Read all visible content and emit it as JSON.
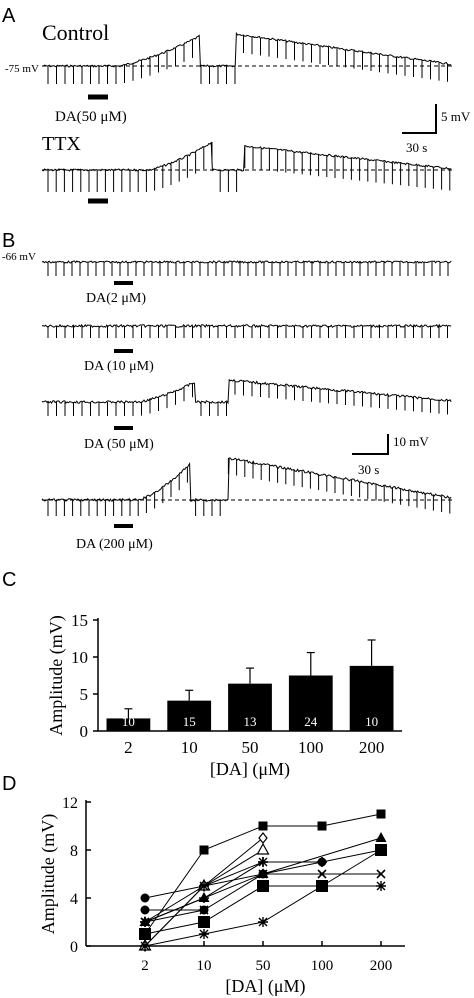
{
  "panelA": {
    "label": "A",
    "trace1_label": "Control",
    "trace2_label": "TTX",
    "baseline_label": "-75 mV",
    "drug_label": "DA(50 μM)",
    "scale_mv": "5 mV",
    "scale_time": "30 s"
  },
  "panelB": {
    "label": "B",
    "baseline_label": "-66 mV",
    "drug_labels": [
      "DA(2 μM)",
      "DA (10 μM)",
      "DA (50 μM)",
      "DA (200 μM)"
    ],
    "scale_mv": "10 mV",
    "scale_time": "30 s"
  },
  "panelC": {
    "label": "C",
    "chart_data": {
      "type": "bar",
      "categories": [
        "2",
        "10",
        "50",
        "100",
        "200"
      ],
      "values": [
        1.7,
        4.1,
        6.4,
        7.5,
        8.8
      ],
      "errors": [
        1.3,
        1.4,
        2.1,
        3.1,
        3.5
      ],
      "n_labels": [
        "10",
        "15",
        "13",
        "24",
        "10"
      ],
      "xlabel": "[DA] (μM)",
      "ylabel": "Amplitude (mV)",
      "ylim": [
        0,
        15
      ],
      "yticks": [
        "0",
        "5",
        "10",
        "15"
      ],
      "bar_color": "#000000"
    }
  },
  "panelD": {
    "label": "D",
    "chart_data": {
      "type": "line",
      "categories": [
        "2",
        "10",
        "50",
        "100",
        "200"
      ],
      "xlabel": "[DA] (μM)",
      "ylabel": "Amplitude (mV)",
      "ylim": [
        0,
        12
      ],
      "yticks": [
        "0",
        "4",
        "8",
        "12"
      ],
      "series": [
        {
          "marker": "square",
          "points": [
            [
              0,
              1
            ],
            [
              1,
              8
            ],
            [
              2,
              10
            ],
            [
              3,
              10
            ],
            [
              4,
              11
            ]
          ]
        },
        {
          "marker": "circle",
          "points": [
            [
              0,
              4
            ],
            [
              1,
              5
            ],
            [
              2,
              6
            ],
            [
              3,
              7
            ]
          ]
        },
        {
          "marker": "circle",
          "points": [
            [
              0,
              3
            ],
            [
              1,
              3
            ]
          ]
        },
        {
          "marker": "triangle",
          "points": [
            [
              0,
              2
            ],
            [
              1,
              4
            ],
            [
              2,
              6
            ],
            [
              4,
              9
            ]
          ]
        },
        {
          "marker": "diamond-open",
          "points": [
            [
              0,
              0
            ],
            [
              1,
              5
            ],
            [
              2,
              9
            ]
          ]
        },
        {
          "marker": "triangle-open",
          "points": [
            [
              0,
              0
            ],
            [
              1,
              5
            ],
            [
              2,
              8
            ]
          ]
        },
        {
          "marker": "cross",
          "points": [
            [
              0,
              2
            ],
            [
              1,
              4
            ],
            [
              2,
              7
            ],
            [
              3,
              7
            ],
            [
              4,
              8
            ]
          ]
        },
        {
          "marker": "x",
          "points": [
            [
              0,
              2
            ],
            [
              1,
              3
            ],
            [
              2,
              6
            ],
            [
              3,
              6
            ],
            [
              4,
              6
            ]
          ]
        },
        {
          "marker": "star",
          "points": [
            [
              0,
              2
            ],
            [
              1,
              5
            ],
            [
              2,
              7
            ]
          ]
        },
        {
          "marker": "star",
          "points": [
            [
              0,
              0
            ],
            [
              1,
              1
            ],
            [
              2,
              2
            ],
            [
              3,
              5
            ],
            [
              4,
              5
            ]
          ]
        },
        {
          "marker": "square-big",
          "points": [
            [
              0,
              1
            ],
            [
              1,
              2
            ],
            [
              2,
              5
            ],
            [
              3,
              5
            ],
            [
              4,
              8
            ]
          ]
        }
      ]
    }
  }
}
